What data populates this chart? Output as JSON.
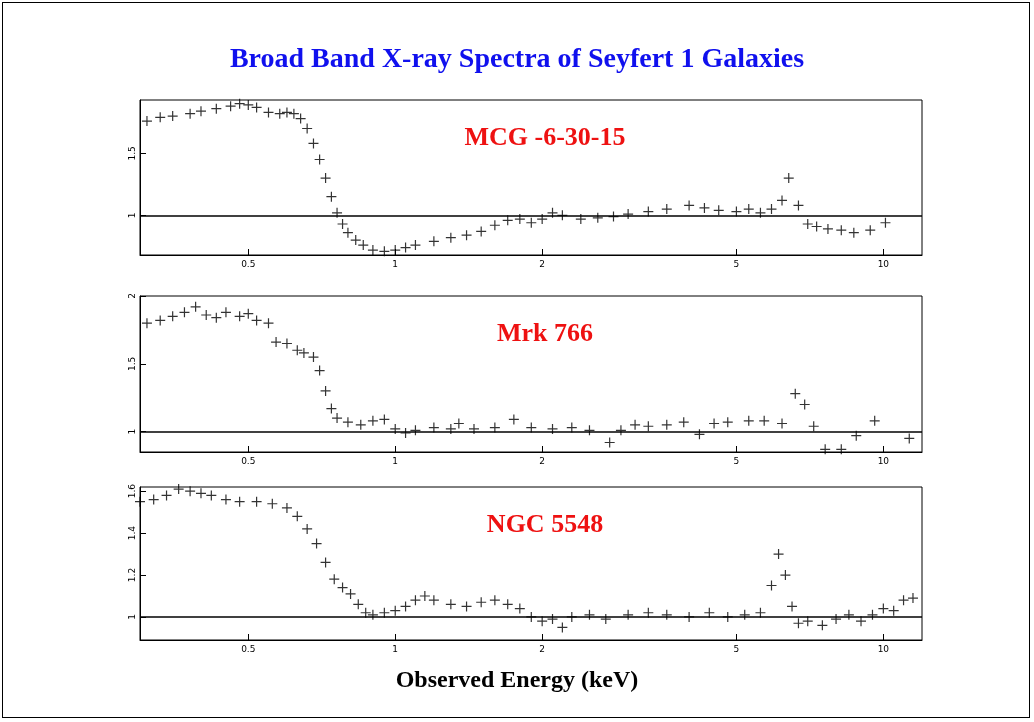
{
  "chart_data": [
    {
      "type": "scatter",
      "title": "Broad Band X-ray Spectra of Seyfert 1 Galaxies",
      "annotations": [
        "MCG -6-30-15"
      ],
      "marker": "cross",
      "grid": false,
      "xlim": [
        0.3,
        12
      ],
      "xticks": [
        0.5,
        1,
        2,
        5,
        10
      ],
      "log": "x",
      "ylim": [
        0.68,
        1.93
      ],
      "yticks": [
        1,
        1.5
      ],
      "ref_lines": [
        {
          "axis": "y",
          "value": 1,
          "color": "#000000"
        }
      ],
      "series": [
        {
          "color": "#000000",
          "x": [
            0.31,
            0.33,
            0.35,
            0.38,
            0.4,
            0.43,
            0.46,
            0.48,
            0.5,
            0.52,
            0.55,
            0.58,
            0.6,
            0.62,
            0.64,
            0.66,
            0.68,
            0.7,
            0.72,
            0.74,
            0.76,
            0.78,
            0.8,
            0.83,
            0.86,
            0.9,
            0.95,
            1,
            1.05,
            1.1,
            1.2,
            1.3,
            1.4,
            1.5,
            1.6,
            1.7,
            1.8,
            1.9,
            2,
            2.1,
            2.2,
            2.4,
            2.6,
            2.8,
            3,
            3.3,
            3.6,
            4,
            4.3,
            4.6,
            5,
            5.3,
            5.6,
            5.9,
            6.2,
            6.4,
            6.7,
            7,
            7.3,
            7.7,
            8.2,
            8.7,
            9.4,
            10.1
          ],
          "values": [
            1.76,
            1.79,
            1.8,
            1.82,
            1.84,
            1.86,
            1.88,
            1.9,
            1.89,
            1.87,
            1.83,
            1.82,
            1.83,
            1.82,
            1.78,
            1.7,
            1.58,
            1.45,
            1.3,
            1.15,
            1.02,
            0.93,
            0.86,
            0.8,
            0.76,
            0.72,
            0.71,
            0.72,
            0.74,
            0.76,
            0.79,
            0.82,
            0.84,
            0.87,
            0.92,
            0.96,
            0.97,
            0.94,
            0.97,
            1.02,
            1,
            0.97,
            0.98,
            0.99,
            1.01,
            1.03,
            1.05,
            1.08,
            1.06,
            1.04,
            1.03,
            1.05,
            1.02,
            1.05,
            1.12,
            1.3,
            1.08,
            0.93,
            0.91,
            0.89,
            0.88,
            0.86,
            0.88,
            0.94
          ]
        }
      ]
    },
    {
      "type": "scatter",
      "annotations": [
        "Mrk 766"
      ],
      "marker": "cross",
      "grid": false,
      "xlim": [
        0.3,
        12
      ],
      "xticks": [
        0.5,
        1,
        2,
        5,
        10
      ],
      "log": "x",
      "ylim": [
        0.85,
        2
      ],
      "yticks": [
        1,
        1.5,
        2
      ],
      "ref_lines": [
        {
          "axis": "y",
          "value": 1,
          "color": "#000000"
        }
      ],
      "series": [
        {
          "color": "#000000",
          "x": [
            0.31,
            0.33,
            0.35,
            0.37,
            0.39,
            0.41,
            0.43,
            0.45,
            0.48,
            0.5,
            0.52,
            0.55,
            0.57,
            0.6,
            0.63,
            0.65,
            0.68,
            0.7,
            0.72,
            0.74,
            0.76,
            0.8,
            0.85,
            0.9,
            0.95,
            1,
            1.05,
            1.1,
            1.2,
            1.3,
            1.35,
            1.45,
            1.6,
            1.75,
            1.9,
            2.1,
            2.3,
            2.5,
            2.75,
            2.9,
            3.1,
            3.3,
            3.6,
            3.9,
            4.2,
            4.5,
            4.8,
            5.3,
            5.7,
            6.2,
            6.6,
            6.9,
            7.2,
            7.6,
            8.2,
            8.8,
            9.6,
            11.3
          ],
          "values": [
            1.8,
            1.82,
            1.85,
            1.88,
            1.92,
            1.86,
            1.84,
            1.88,
            1.85,
            1.87,
            1.82,
            1.8,
            1.66,
            1.65,
            1.6,
            1.58,
            1.55,
            1.45,
            1.3,
            1.17,
            1.1,
            1.07,
            1.05,
            1.08,
            1.09,
            1.02,
            0.99,
            1.01,
            1.03,
            1.02,
            1.06,
            1.02,
            1.03,
            1.09,
            1.03,
            1.02,
            1.03,
            1.01,
            0.92,
            1.01,
            1.05,
            1.04,
            1.05,
            1.07,
            0.98,
            1.06,
            1.07,
            1.08,
            1.08,
            1.06,
            1.28,
            1.2,
            1.04,
            0.87,
            0.87,
            0.97,
            1.08,
            0.95
          ]
        }
      ]
    },
    {
      "type": "scatter",
      "annotations": [
        "NGC 5548"
      ],
      "xlabel": "Observed Energy (keV)",
      "marker": "cross",
      "grid": false,
      "xlim": [
        0.3,
        12
      ],
      "xticks": [
        0.5,
        1,
        2,
        5,
        10
      ],
      "log": "x",
      "ylim": [
        0.89,
        1.62
      ],
      "yticks": [
        1,
        1.2,
        1.4,
        1.6
      ],
      "ref_lines": [
        {
          "axis": "y",
          "value": 1,
          "color": "#000000"
        }
      ],
      "series": [
        {
          "color": "#000000",
          "x": [
            0.3,
            0.32,
            0.34,
            0.36,
            0.38,
            0.4,
            0.42,
            0.45,
            0.48,
            0.52,
            0.56,
            0.6,
            0.63,
            0.66,
            0.69,
            0.72,
            0.75,
            0.78,
            0.81,
            0.84,
            0.87,
            0.9,
            0.95,
            1,
            1.05,
            1.1,
            1.15,
            1.2,
            1.3,
            1.4,
            1.5,
            1.6,
            1.7,
            1.8,
            1.9,
            2,
            2.1,
            2.2,
            2.3,
            2.5,
            2.7,
            3,
            3.3,
            3.6,
            4,
            4.4,
            4.8,
            5.2,
            5.6,
            5.9,
            6.1,
            6.3,
            6.5,
            6.7,
            7,
            7.5,
            8,
            8.5,
            9,
            9.5,
            10,
            10.5,
            11,
            11.5
          ],
          "values": [
            1.55,
            1.56,
            1.58,
            1.61,
            1.6,
            1.59,
            1.58,
            1.56,
            1.55,
            1.55,
            1.54,
            1.52,
            1.48,
            1.42,
            1.35,
            1.26,
            1.18,
            1.14,
            1.11,
            1.06,
            1.02,
            1.01,
            1.02,
            1.03,
            1.05,
            1.08,
            1.1,
            1.08,
            1.06,
            1.05,
            1.07,
            1.08,
            1.06,
            1.04,
            1,
            0.98,
            0.99,
            0.95,
            1,
            1.01,
            0.99,
            1.01,
            1.02,
            1.01,
            1,
            1.02,
            1,
            1.01,
            1.02,
            1.15,
            1.3,
            1.2,
            1.05,
            0.97,
            0.98,
            0.96,
            0.99,
            1.01,
            0.98,
            1.01,
            1.04,
            1.03,
            1.08,
            1.09
          ]
        }
      ]
    }
  ]
}
